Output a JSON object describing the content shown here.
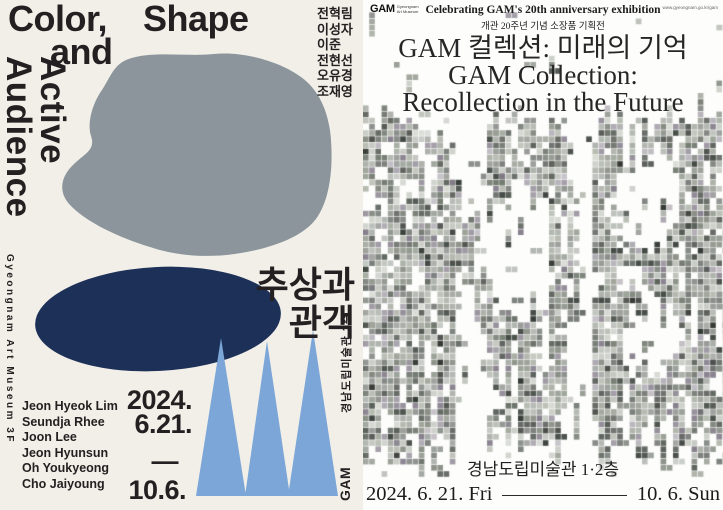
{
  "left_poster": {
    "title_word1": "Color,",
    "title_word2": "Shape",
    "title_word3": "and",
    "vertical_word_active": "Active",
    "vertical_word_audience": "Audience",
    "artists_kr": [
      "전혁림",
      "이성자",
      "이준",
      "전현선",
      "오유경",
      "조재영"
    ],
    "subtitle_kr_line1": "추상과",
    "subtitle_kr_line2": "관객",
    "venue_vertical_en": "Gyeongnam Art Museum 3F",
    "venue_vertical_kr": "경남도립미술관 3층",
    "gam_vertical": "GAM",
    "date_year": "2024.",
    "date_start": "6.21.",
    "date_dash": "—",
    "date_end": "10.6.",
    "artists_en": [
      "Jeon Hyeok Lim",
      "Seundja Rhee",
      "Joon Lee",
      "Jeon Hyunsun",
      "Oh Youkyeong",
      "Cho Jaiyoung"
    ],
    "colors": {
      "background": "#f1efe8",
      "blob_gray": "#8b959b",
      "ellipse_navy": "#1d3058",
      "triangle_blue": "#7ca6d7",
      "text": "#241f20"
    }
  },
  "right_poster": {
    "logo_text": "GAM",
    "logo_sub_line1": "Gyeongnam",
    "logo_sub_line2": "Art Museum",
    "website": "www.gyeongnam.go.kr/gam",
    "header_en": "Celebrating GAM's 20th anniversary exhibition",
    "header_kr": "개관 20주년 기념 소장품 기획전",
    "title_kr": "GAM 컬렉션: 미래의 기억",
    "title_en_line1": "GAM Collection:",
    "title_en_line2": "Recollection in the Future",
    "venue": "경남도립미술관 1·2층",
    "date_start": "2024. 6. 21. Fri",
    "date_end": "10. 6. Sun",
    "colors": {
      "background": "#fdfdfc",
      "text": "#222222"
    },
    "artwork": {
      "description": "pixelated-glitch-artwork",
      "seed": 20240621,
      "cell": 6.2,
      "palette": [
        "#5c635b",
        "#747b71",
        "#8b9187",
        "#a2a79c",
        "#454b45",
        "#2f352f",
        "#9aa196",
        "#b4b9ae",
        "#87808d"
      ]
    }
  }
}
